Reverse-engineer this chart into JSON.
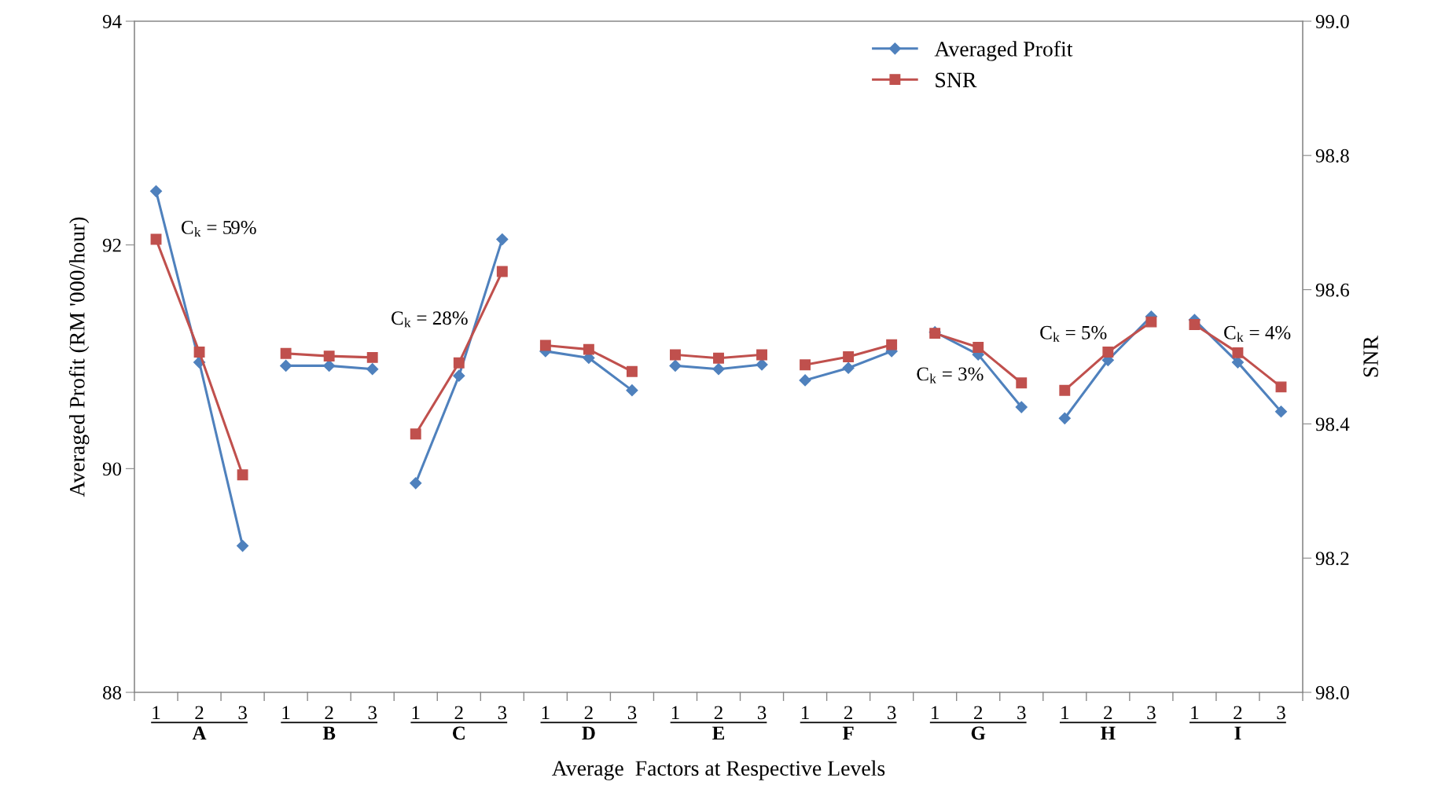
{
  "chart_data": {
    "type": "line",
    "xlabel": "Average  Factors at Respective Levels",
    "ylabel": "Averaged Profit (RM '000/hour)",
    "y2label": "SNR",
    "categories": [
      "1",
      "2",
      "3",
      "1",
      "2",
      "3",
      "1",
      "2",
      "3",
      "1",
      "2",
      "3",
      "1",
      "2",
      "3",
      "1",
      "2",
      "3",
      "1",
      "2",
      "3",
      "1",
      "2",
      "3",
      "1",
      "2",
      "3"
    ],
    "ylim": [
      88,
      94
    ],
    "yticks": [
      88,
      90,
      92,
      94
    ],
    "y2lim": [
      98.0,
      99.0
    ],
    "y2ticks": [
      {
        "value": 98.0,
        "label": "98.0"
      },
      {
        "value": 98.2,
        "label": "98.2"
      },
      {
        "value": 98.4,
        "label": "98.4"
      },
      {
        "value": 98.6,
        "label": "98.6"
      },
      {
        "value": 98.8,
        "label": "98.8"
      },
      {
        "value": 99.0,
        "label": "99.0"
      }
    ],
    "grid": false,
    "legend": "top right",
    "series": [
      {
        "name": "Averaged Profit",
        "color": "#4f81bd",
        "marker": "diamond",
        "values": [
          92.48,
          90.95,
          89.31,
          null,
          null,
          null,
          null,
          null,
          null,
          null,
          null,
          null,
          null,
          null,
          null,
          null,
          null,
          null,
          null,
          null,
          null,
          null,
          null,
          null,
          null,
          null,
          null
        ]
      },
      {
        "color": "#4f81bd",
        "marker": "diamond",
        "values": [
          null,
          null,
          null,
          90.92,
          90.92,
          90.89,
          null,
          null,
          null,
          null,
          null,
          null,
          null,
          null,
          null,
          null,
          null,
          null,
          null,
          null,
          null,
          null,
          null,
          null,
          null,
          null,
          null
        ]
      },
      {
        "color": "#4f81bd",
        "marker": "diamond",
        "values": [
          null,
          null,
          null,
          null,
          null,
          null,
          89.87,
          90.83,
          92.05,
          null,
          null,
          null,
          null,
          null,
          null,
          null,
          null,
          null,
          null,
          null,
          null,
          null,
          null,
          null,
          null,
          null,
          null
        ]
      },
      {
        "color": "#4f81bd",
        "marker": "diamond",
        "values": [
          null,
          null,
          null,
          null,
          null,
          null,
          null,
          null,
          null,
          91.05,
          90.99,
          90.7,
          null,
          null,
          null,
          null,
          null,
          null,
          null,
          null,
          null,
          null,
          null,
          null,
          null,
          null,
          null
        ]
      },
      {
        "color": "#4f81bd",
        "marker": "diamond",
        "values": [
          null,
          null,
          null,
          null,
          null,
          null,
          null,
          null,
          null,
          null,
          null,
          null,
          90.92,
          90.89,
          90.93,
          null,
          null,
          null,
          null,
          null,
          null,
          null,
          null,
          null,
          null,
          null,
          null
        ]
      },
      {
        "color": "#4f81bd",
        "marker": "diamond",
        "values": [
          null,
          null,
          null,
          null,
          null,
          null,
          null,
          null,
          null,
          null,
          null,
          null,
          null,
          null,
          null,
          90.79,
          90.9,
          91.05,
          null,
          null,
          null,
          null,
          null,
          null,
          null,
          null,
          null
        ]
      },
      {
        "color": "#4f81bd",
        "marker": "diamond",
        "values": [
          null,
          null,
          null,
          null,
          null,
          null,
          null,
          null,
          null,
          null,
          null,
          null,
          null,
          null,
          null,
          null,
          null,
          null,
          91.22,
          91.02,
          90.55,
          null,
          null,
          null,
          null,
          null,
          null
        ]
      },
      {
        "color": "#4f81bd",
        "marker": "diamond",
        "values": [
          null,
          null,
          null,
          null,
          null,
          null,
          null,
          null,
          null,
          null,
          null,
          null,
          null,
          null,
          null,
          null,
          null,
          null,
          null,
          null,
          null,
          90.45,
          90.97,
          91.36,
          null,
          null,
          null
        ]
      },
      {
        "color": "#4f81bd",
        "marker": "diamond",
        "values": [
          null,
          null,
          null,
          null,
          null,
          null,
          null,
          null,
          null,
          null,
          null,
          null,
          null,
          null,
          null,
          null,
          null,
          null,
          null,
          null,
          null,
          null,
          null,
          null,
          91.33,
          90.95,
          90.51
        ]
      },
      {
        "name": "SNR",
        "color": "#c0504d",
        "marker": "square",
        "axis": "y2",
        "values": [
          98.675,
          98.507,
          98.324,
          null,
          null,
          null,
          null,
          null,
          null,
          null,
          null,
          null,
          null,
          null,
          null,
          null,
          null,
          null,
          null,
          null,
          null,
          null,
          null,
          null,
          null,
          null,
          null
        ]
      },
      {
        "color": "#c0504d",
        "marker": "square",
        "axis": "y2",
        "values": [
          null,
          null,
          null,
          98.505,
          98.501,
          98.499,
          null,
          null,
          null,
          null,
          null,
          null,
          null,
          null,
          null,
          null,
          null,
          null,
          null,
          null,
          null,
          null,
          null,
          null,
          null,
          null,
          null
        ]
      },
      {
        "color": "#c0504d",
        "marker": "square",
        "axis": "y2",
        "values": [
          null,
          null,
          null,
          null,
          null,
          null,
          98.385,
          98.491,
          98.627,
          null,
          null,
          null,
          null,
          null,
          null,
          null,
          null,
          null,
          null,
          null,
          null,
          null,
          null,
          null,
          null,
          null,
          null
        ]
      },
      {
        "color": "#c0504d",
        "marker": "square",
        "axis": "y2",
        "values": [
          null,
          null,
          null,
          null,
          null,
          null,
          null,
          null,
          null,
          98.517,
          98.511,
          98.478,
          null,
          null,
          null,
          null,
          null,
          null,
          null,
          null,
          null,
          null,
          null,
          null,
          null,
          null,
          null
        ]
      },
      {
        "color": "#c0504d",
        "marker": "square",
        "axis": "y2",
        "values": [
          null,
          null,
          null,
          null,
          null,
          null,
          null,
          null,
          null,
          null,
          null,
          null,
          98.503,
          98.498,
          98.503,
          null,
          null,
          null,
          null,
          null,
          null,
          null,
          null,
          null,
          null,
          null,
          null
        ]
      },
      {
        "color": "#c0504d",
        "marker": "square",
        "axis": "y2",
        "values": [
          null,
          null,
          null,
          null,
          null,
          null,
          null,
          null,
          null,
          null,
          null,
          null,
          null,
          null,
          null,
          98.488,
          98.5,
          98.518,
          null,
          null,
          null,
          null,
          null,
          null,
          null,
          null,
          null
        ]
      },
      {
        "color": "#c0504d",
        "marker": "square",
        "axis": "y2",
        "values": [
          null,
          null,
          null,
          null,
          null,
          null,
          null,
          null,
          null,
          null,
          null,
          null,
          null,
          null,
          null,
          null,
          null,
          null,
          98.535,
          98.514,
          98.461,
          null,
          null,
          null,
          null,
          null,
          null
        ]
      },
      {
        "color": "#c0504d",
        "marker": "square",
        "axis": "y2",
        "values": [
          null,
          null,
          null,
          null,
          null,
          null,
          null,
          null,
          null,
          null,
          null,
          null,
          null,
          null,
          null,
          null,
          null,
          null,
          null,
          null,
          null,
          98.45,
          98.507,
          98.552,
          null,
          null,
          null
        ]
      },
      {
        "color": "#c0504d",
        "marker": "square",
        "axis": "y2",
        "values": [
          null,
          null,
          null,
          null,
          null,
          null,
          null,
          null,
          null,
          null,
          null,
          null,
          null,
          null,
          null,
          null,
          null,
          null,
          null,
          null,
          null,
          null,
          null,
          null,
          98.548,
          98.506,
          98.455
        ]
      }
    ],
    "annotations": [
      "A",
      "B",
      "C",
      "D",
      "E",
      "F",
      "G",
      "H",
      "I",
      "C$_{k}$ = 59%",
      "C$_{k}$ = 28%",
      "C$_{k}$ = 3%",
      "C$_{k}$ = 5%",
      "C$_{k}$ = 4%"
    ]
  }
}
